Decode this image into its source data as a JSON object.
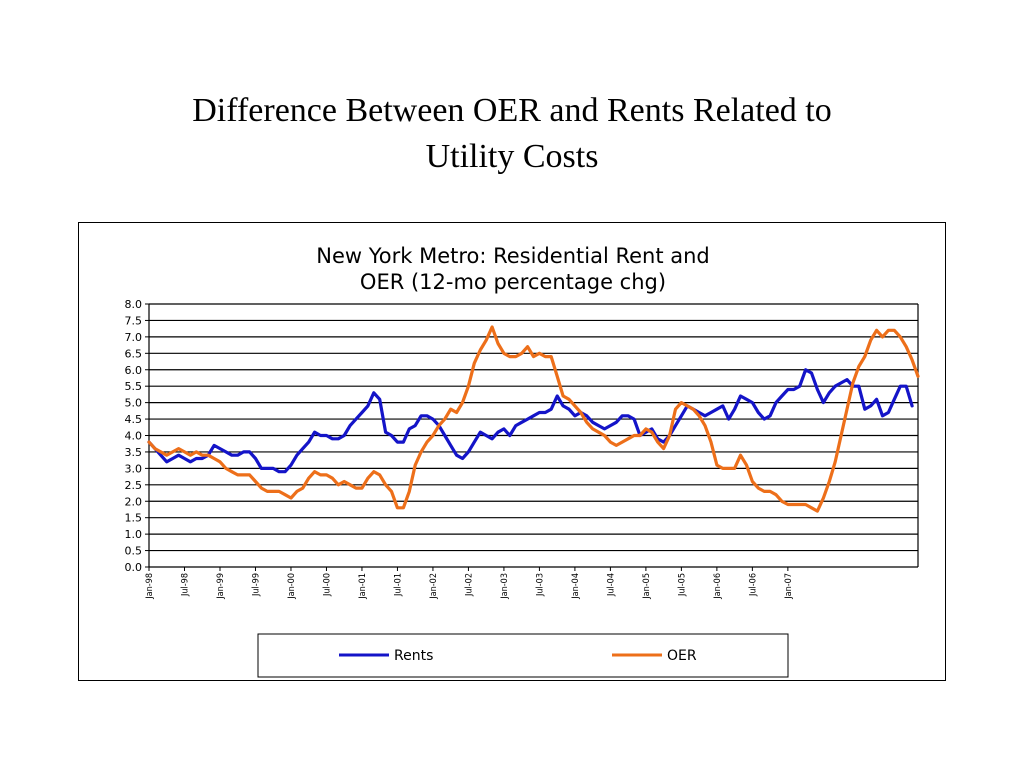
{
  "slide": {
    "title_line1": "Difference Between OER and Rents Related to",
    "title_line2": "Utility Costs"
  },
  "chart_data": {
    "type": "line",
    "title_line1": "New York Metro: Residential Rent and",
    "title_line2": "OER (12-mo percentage chg)",
    "ylim": [
      0,
      8
    ],
    "y_ticks": [
      "0.0",
      "0.5",
      "1.0",
      "1.5",
      "2.0",
      "2.5",
      "3.0",
      "3.5",
      "4.0",
      "4.5",
      "5.0",
      "5.5",
      "6.0",
      "6.5",
      "7.0",
      "7.5",
      "8.0"
    ],
    "x_ticks": [
      "Jan-98",
      "Jul-98",
      "Jan-99",
      "Jul-99",
      "Jan-00",
      "Jul-00",
      "Jan-01",
      "Jul-01",
      "Jan-02",
      "Jul-02",
      "Jan-03",
      "Jul-03",
      "Jan-04",
      "Jul-04",
      "Jan-05",
      "Jul-05",
      "Jan-06",
      "Jul-06",
      "Jan-07"
    ],
    "x_start": "Jan-98",
    "x_end": "Feb-07",
    "grid": true,
    "legend_position": "bottom",
    "series": [
      {
        "name": "Rents",
        "color": "#1414c8",
        "points": [
          [
            0,
            3.8
          ],
          [
            1,
            3.6
          ],
          [
            2,
            3.4
          ],
          [
            3,
            3.2
          ],
          [
            4,
            3.3
          ],
          [
            5,
            3.4
          ],
          [
            6,
            3.3
          ],
          [
            7,
            3.2
          ],
          [
            8,
            3.3
          ],
          [
            9,
            3.3
          ],
          [
            10,
            3.4
          ],
          [
            11,
            3.7
          ],
          [
            12,
            3.6
          ],
          [
            13,
            3.5
          ],
          [
            14,
            3.4
          ],
          [
            15,
            3.4
          ],
          [
            16,
            3.5
          ],
          [
            17,
            3.5
          ],
          [
            18,
            3.3
          ],
          [
            19,
            3.0
          ],
          [
            20,
            3.0
          ],
          [
            21,
            3.0
          ],
          [
            22,
            2.9
          ],
          [
            23,
            2.9
          ],
          [
            24,
            3.1
          ],
          [
            25,
            3.4
          ],
          [
            26,
            3.6
          ],
          [
            27,
            3.8
          ],
          [
            28,
            4.1
          ],
          [
            29,
            4.0
          ],
          [
            30,
            4.0
          ],
          [
            31,
            3.9
          ],
          [
            32,
            3.9
          ],
          [
            33,
            4.0
          ],
          [
            34,
            4.3
          ],
          [
            35,
            4.5
          ],
          [
            36,
            4.7
          ],
          [
            37,
            4.9
          ],
          [
            38,
            5.3
          ],
          [
            39,
            5.1
          ],
          [
            40,
            4.1
          ],
          [
            41,
            4.0
          ],
          [
            42,
            3.8
          ],
          [
            43,
            3.8
          ],
          [
            44,
            4.2
          ],
          [
            45,
            4.3
          ],
          [
            46,
            4.6
          ],
          [
            47,
            4.6
          ],
          [
            48,
            4.5
          ],
          [
            49,
            4.3
          ],
          [
            50,
            4.0
          ],
          [
            51,
            3.7
          ],
          [
            52,
            3.4
          ],
          [
            53,
            3.3
          ],
          [
            54,
            3.5
          ],
          [
            55,
            3.8
          ],
          [
            56,
            4.1
          ],
          [
            57,
            4.0
          ],
          [
            58,
            3.9
          ],
          [
            59,
            4.1
          ],
          [
            60,
            4.2
          ],
          [
            61,
            4.0
          ],
          [
            62,
            4.3
          ],
          [
            63,
            4.4
          ],
          [
            64,
            4.5
          ],
          [
            65,
            4.6
          ],
          [
            66,
            4.7
          ],
          [
            67,
            4.7
          ],
          [
            68,
            4.8
          ],
          [
            69,
            5.2
          ],
          [
            70,
            4.9
          ],
          [
            71,
            4.8
          ],
          [
            72,
            4.6
          ],
          [
            73,
            4.7
          ],
          [
            74,
            4.6
          ],
          [
            75,
            4.4
          ],
          [
            76,
            4.3
          ],
          [
            77,
            4.2
          ],
          [
            78,
            4.3
          ],
          [
            79,
            4.4
          ],
          [
            80,
            4.6
          ],
          [
            81,
            4.6
          ],
          [
            82,
            4.5
          ],
          [
            83,
            4.0
          ],
          [
            84,
            4.1
          ],
          [
            85,
            4.2
          ],
          [
            86,
            3.9
          ],
          [
            87,
            3.8
          ],
          [
            88,
            4.0
          ],
          [
            89,
            4.3
          ],
          [
            90,
            4.6
          ],
          [
            91,
            4.9
          ],
          [
            92,
            4.8
          ],
          [
            93,
            4.7
          ],
          [
            94,
            4.6
          ],
          [
            95,
            4.7
          ],
          [
            96,
            4.8
          ],
          [
            97,
            4.9
          ],
          [
            98,
            4.5
          ],
          [
            99,
            4.8
          ],
          [
            100,
            5.2
          ],
          [
            101,
            5.1
          ],
          [
            102,
            5.0
          ],
          [
            103,
            4.7
          ],
          [
            104,
            4.5
          ],
          [
            105,
            4.6
          ],
          [
            106,
            5.0
          ],
          [
            107,
            5.2
          ],
          [
            108,
            5.4
          ],
          [
            109,
            5.4
          ],
          [
            110,
            5.5
          ],
          [
            111,
            6.0
          ],
          [
            112,
            5.9
          ],
          [
            113,
            5.4
          ],
          [
            114,
            5.0
          ],
          [
            115,
            5.3
          ],
          [
            116,
            5.5
          ],
          [
            117,
            5.6
          ],
          [
            118,
            5.7
          ],
          [
            119,
            5.5
          ],
          [
            120,
            5.5
          ],
          [
            121,
            4.8
          ],
          [
            122,
            4.9
          ],
          [
            123,
            5.1
          ],
          [
            124,
            4.6
          ],
          [
            125,
            4.7
          ],
          [
            126,
            5.1
          ],
          [
            127,
            5.5
          ],
          [
            128,
            5.5
          ],
          [
            129,
            4.9
          ]
        ]
      },
      {
        "name": "OER",
        "color": "#ed6f1a",
        "points": [
          [
            0,
            3.8
          ],
          [
            1,
            3.6
          ],
          [
            2,
            3.5
          ],
          [
            3,
            3.4
          ],
          [
            4,
            3.5
          ],
          [
            5,
            3.6
          ],
          [
            6,
            3.5
          ],
          [
            7,
            3.4
          ],
          [
            8,
            3.5
          ],
          [
            9,
            3.4
          ],
          [
            10,
            3.4
          ],
          [
            11,
            3.3
          ],
          [
            12,
            3.2
          ],
          [
            13,
            3.0
          ],
          [
            14,
            2.9
          ],
          [
            15,
            2.8
          ],
          [
            16,
            2.8
          ],
          [
            17,
            2.8
          ],
          [
            18,
            2.6
          ],
          [
            19,
            2.4
          ],
          [
            20,
            2.3
          ],
          [
            21,
            2.3
          ],
          [
            22,
            2.3
          ],
          [
            23,
            2.2
          ],
          [
            24,
            2.1
          ],
          [
            25,
            2.3
          ],
          [
            26,
            2.4
          ],
          [
            27,
            2.7
          ],
          [
            28,
            2.9
          ],
          [
            29,
            2.8
          ],
          [
            30,
            2.8
          ],
          [
            31,
            2.7
          ],
          [
            32,
            2.5
          ],
          [
            33,
            2.6
          ],
          [
            34,
            2.5
          ],
          [
            35,
            2.4
          ],
          [
            36,
            2.4
          ],
          [
            37,
            2.7
          ],
          [
            38,
            2.9
          ],
          [
            39,
            2.8
          ],
          [
            40,
            2.5
          ],
          [
            41,
            2.3
          ],
          [
            42,
            1.8
          ],
          [
            43,
            1.8
          ],
          [
            44,
            2.3
          ],
          [
            45,
            3.1
          ],
          [
            46,
            3.5
          ],
          [
            47,
            3.8
          ],
          [
            48,
            4.0
          ],
          [
            49,
            4.3
          ],
          [
            50,
            4.5
          ],
          [
            51,
            4.8
          ],
          [
            52,
            4.7
          ],
          [
            53,
            5.0
          ],
          [
            54,
            5.5
          ],
          [
            55,
            6.2
          ],
          [
            56,
            6.6
          ],
          [
            57,
            6.9
          ],
          [
            58,
            7.3
          ],
          [
            59,
            6.8
          ],
          [
            60,
            6.5
          ],
          [
            61,
            6.4
          ],
          [
            62,
            6.4
          ],
          [
            63,
            6.5
          ],
          [
            64,
            6.7
          ],
          [
            65,
            6.4
          ],
          [
            66,
            6.5
          ],
          [
            67,
            6.4
          ],
          [
            68,
            6.4
          ],
          [
            69,
            5.8
          ],
          [
            70,
            5.2
          ],
          [
            71,
            5.1
          ],
          [
            72,
            4.9
          ],
          [
            73,
            4.7
          ],
          [
            74,
            4.4
          ],
          [
            75,
            4.2
          ],
          [
            76,
            4.1
          ],
          [
            77,
            4.0
          ],
          [
            78,
            3.8
          ],
          [
            79,
            3.7
          ],
          [
            80,
            3.8
          ],
          [
            81,
            3.9
          ],
          [
            82,
            4.0
          ],
          [
            83,
            4.0
          ],
          [
            84,
            4.2
          ],
          [
            85,
            4.1
          ],
          [
            86,
            3.8
          ],
          [
            87,
            3.6
          ],
          [
            88,
            4.0
          ],
          [
            89,
            4.8
          ],
          [
            90,
            5.0
          ],
          [
            91,
            4.9
          ],
          [
            92,
            4.8
          ],
          [
            93,
            4.6
          ],
          [
            94,
            4.3
          ],
          [
            95,
            3.8
          ],
          [
            96,
            3.1
          ],
          [
            97,
            3.0
          ],
          [
            98,
            3.0
          ],
          [
            99,
            3.0
          ],
          [
            100,
            3.4
          ],
          [
            101,
            3.1
          ],
          [
            102,
            2.6
          ],
          [
            103,
            2.4
          ],
          [
            104,
            2.3
          ],
          [
            105,
            2.3
          ],
          [
            106,
            2.2
          ],
          [
            107,
            2.0
          ],
          [
            108,
            1.9
          ],
          [
            109,
            1.9
          ],
          [
            110,
            1.9
          ],
          [
            111,
            1.9
          ],
          [
            112,
            1.8
          ],
          [
            113,
            1.7
          ],
          [
            114,
            2.1
          ],
          [
            115,
            2.6
          ],
          [
            116,
            3.2
          ],
          [
            117,
            4.0
          ],
          [
            118,
            4.8
          ],
          [
            119,
            5.6
          ],
          [
            120,
            6.1
          ],
          [
            121,
            6.4
          ],
          [
            122,
            6.9
          ],
          [
            123,
            7.2
          ],
          [
            124,
            7.0
          ],
          [
            125,
            7.2
          ],
          [
            126,
            7.2
          ],
          [
            127,
            7.0
          ],
          [
            128,
            6.7
          ],
          [
            129,
            6.3
          ],
          [
            130,
            5.8
          ]
        ]
      }
    ]
  }
}
